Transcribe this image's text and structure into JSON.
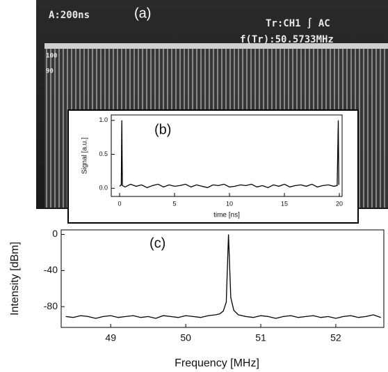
{
  "oscilloscope": {
    "label": "(a)",
    "timebase": "A:200ns",
    "trigger": "Tr:CH1 ∫ AC",
    "frequency": "f(Tr):50.5733MHz",
    "graticule": [
      "100",
      "90"
    ]
  },
  "chart_data": [
    {
      "type": "line",
      "label": "(b)",
      "x_label": "time [ns]",
      "y_label": "Signal [a.u.]",
      "color": "#000000",
      "xlim": [
        -0.76,
        20.25
      ],
      "xticks": [
        0,
        5,
        10,
        15,
        20
      ],
      "ylim": [
        -0.12,
        1.08
      ],
      "yticks": [
        {
          "value": 0,
          "label": "0.0"
        },
        {
          "value": 0.5,
          "label": "0.5"
        },
        {
          "value": 1,
          "label": "1.0"
        }
      ],
      "x": [
        0,
        0.15,
        0.2,
        0.25,
        0.5,
        1,
        1.5,
        2,
        2.5,
        3,
        3.5,
        4,
        4.5,
        5,
        5.5,
        6,
        6.5,
        7,
        7.5,
        8,
        8.5,
        9,
        9.5,
        10,
        10.5,
        11,
        11.5,
        12,
        12.5,
        13,
        13.5,
        14,
        14.5,
        15,
        15.5,
        16,
        16.5,
        17,
        17.5,
        18,
        18.5,
        19,
        19.5,
        19.8,
        19.9,
        19.95
      ],
      "values": [
        0.03,
        0.05,
        1.0,
        0.04,
        0.02,
        0.06,
        0.03,
        0.05,
        0.01,
        0.04,
        0.06,
        0.02,
        0.05,
        0.03,
        0.04,
        0.06,
        0.02,
        0.05,
        0.03,
        0.01,
        0.05,
        0.04,
        0.06,
        0.02,
        0.03,
        0.05,
        0.04,
        0.06,
        0.02,
        0.04,
        0.01,
        0.05,
        0.03,
        0.06,
        0.02,
        0.04,
        0.05,
        0.03,
        0.06,
        0.02,
        0.04,
        0.05,
        0.03,
        0.04,
        1.0,
        0.05
      ]
    },
    {
      "type": "line",
      "label": "(c)",
      "x_label": "Frequency [MHz]",
      "y_label": "Intensity [dBm]",
      "color": "#000000",
      "xlim": [
        48.34,
        52.64
      ],
      "xticks": [
        49,
        50,
        51,
        52
      ],
      "ylim": [
        -103,
        5
      ],
      "yticks": [
        0,
        -40,
        -80
      ],
      "x": [
        48.4,
        48.5,
        48.6,
        48.7,
        48.8,
        48.9,
        49.0,
        49.1,
        49.2,
        49.3,
        49.4,
        49.5,
        49.6,
        49.7,
        49.8,
        49.9,
        50.0,
        50.1,
        50.2,
        50.3,
        50.4,
        50.45,
        50.5,
        50.54,
        50.57,
        50.6,
        50.64,
        50.7,
        50.8,
        50.9,
        51.0,
        51.1,
        51.2,
        51.3,
        51.4,
        51.5,
        51.6,
        51.7,
        51.8,
        51.9,
        52.0,
        52.1,
        52.2,
        52.3,
        52.4,
        52.5,
        52.6
      ],
      "values": [
        -91,
        -92,
        -90,
        -91,
        -93,
        -91,
        -90,
        -92,
        -91,
        -90,
        -92,
        -91,
        -93,
        -90,
        -91,
        -92,
        -90,
        -91,
        -92,
        -90,
        -89,
        -88,
        -85,
        -75,
        0,
        -70,
        -84,
        -89,
        -91,
        -92,
        -90,
        -91,
        -93,
        -91,
        -90,
        -92,
        -91,
        -90,
        -92,
        -91,
        -93,
        -91,
        -90,
        -92,
        -91,
        -89,
        -92
      ]
    }
  ]
}
